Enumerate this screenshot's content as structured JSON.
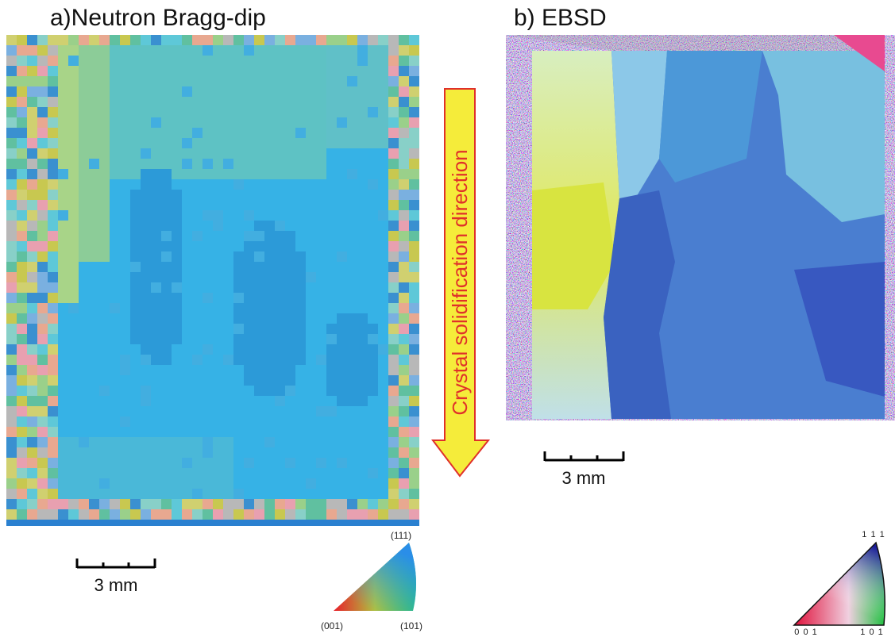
{
  "panel_a": {
    "title": "a)Neutron Bragg-dip",
    "scale_bar": "3 mm",
    "legend": {
      "top": "(111)",
      "left": "(001)",
      "right": "(101)"
    }
  },
  "arrow_label": "Crystal solidification direction",
  "panel_b": {
    "title": "b) EBSD",
    "scale_bar": "3 mm",
    "legend": {
      "top": "1 1 1",
      "left": "0 0 1",
      "right": "1 0 1"
    }
  }
}
